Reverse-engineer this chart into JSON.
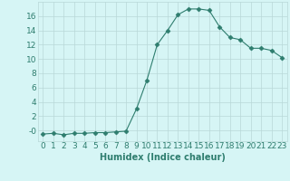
{
  "x": [
    0,
    1,
    2,
    3,
    4,
    5,
    6,
    7,
    8,
    9,
    10,
    11,
    12,
    13,
    14,
    15,
    16,
    17,
    18,
    19,
    20,
    21,
    22,
    23
  ],
  "y": [
    -0.5,
    -0.4,
    -0.6,
    -0.4,
    -0.4,
    -0.3,
    -0.3,
    -0.2,
    -0.1,
    3.0,
    7.0,
    12.0,
    14.0,
    16.2,
    17.0,
    17.0,
    16.8,
    14.5,
    13.0,
    12.7,
    11.5,
    11.5,
    11.2,
    10.2
  ],
  "xlabel": "Humidex (Indice chaleur)",
  "ylim": [
    -1.5,
    18
  ],
  "xlim": [
    -0.5,
    23.5
  ],
  "yticks": [
    0,
    2,
    4,
    6,
    8,
    10,
    12,
    14,
    16
  ],
  "ytick_labels": [
    "-0",
    "2",
    "4",
    "6",
    "8",
    "10",
    "12",
    "14",
    "16"
  ],
  "xticks": [
    0,
    1,
    2,
    3,
    4,
    5,
    6,
    7,
    8,
    9,
    10,
    11,
    12,
    13,
    14,
    15,
    16,
    17,
    18,
    19,
    20,
    21,
    22,
    23
  ],
  "line_color": "#2e7d6e",
  "marker": "D",
  "marker_size": 2.5,
  "bg_color": "#d6f5f5",
  "grid_color": "#b8d8d8",
  "text_color": "#2e7d6e",
  "xlabel_fontsize": 7,
  "tick_fontsize": 6.5
}
